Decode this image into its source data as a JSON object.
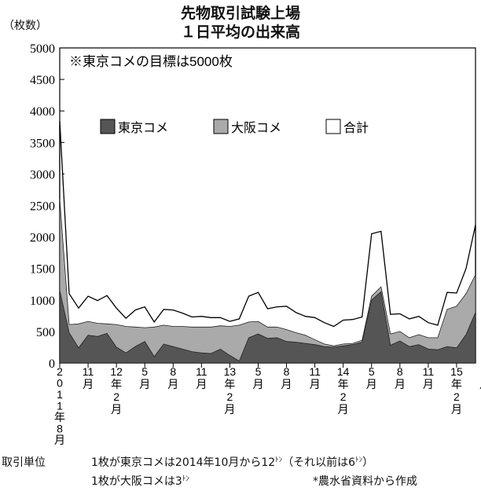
{
  "chart_data": {
    "type": "area",
    "title": "先物取引試験上場",
    "subtitle": "１日平均の出来高",
    "ylabel": "（枚数）",
    "ylim": [
      0,
      5000
    ],
    "yticks": [
      "0",
      "500",
      "1000",
      "1500",
      "2000",
      "2500",
      "3000",
      "3500",
      "4000",
      "4500",
      "5000"
    ],
    "annotation": "※東京コメの目標は5000枚",
    "legend_position": "top-center",
    "x_labels": [
      {
        "i": 0,
        "text": "2\n0\n1\n1\n年\n8\n月"
      },
      {
        "i": 3,
        "text": "11\n月"
      },
      {
        "i": 6,
        "text": "12\n年\n2\n月"
      },
      {
        "i": 9,
        "text": "5\n月"
      },
      {
        "i": 12,
        "text": "8\n月"
      },
      {
        "i": 15,
        "text": "11\n月"
      },
      {
        "i": 18,
        "text": "13\n年\n2\n月"
      },
      {
        "i": 21,
        "text": "5\n月"
      },
      {
        "i": 24,
        "text": "8\n月"
      },
      {
        "i": 27,
        "text": "11\n月"
      },
      {
        "i": 30,
        "text": "14\n年\n2\n月"
      },
      {
        "i": 33,
        "text": "5\n月"
      },
      {
        "i": 36,
        "text": "8\n月"
      },
      {
        "i": 39,
        "text": "11\n月"
      },
      {
        "i": 42,
        "text": "15\n年\n2\n月"
      },
      {
        "i": 45,
        "text": "5\n月"
      }
    ],
    "series": [
      {
        "name": "東京コメ",
        "color": "#555555",
        "values": [
          1150,
          480,
          240,
          440,
          420,
          470,
          250,
          160,
          260,
          340,
          100,
          300,
          260,
          220,
          180,
          160,
          150,
          220,
          120,
          30,
          400,
          460,
          390,
          400,
          340,
          330,
          310,
          290,
          260,
          250,
          270,
          290,
          330,
          1000,
          1130,
          280,
          350,
          260,
          290,
          220,
          210,
          260,
          240,
          450,
          800
        ]
      },
      {
        "name": "大阪コメ",
        "color": "#aaaaaa",
        "values": [
          1450,
          130,
          380,
          220,
          210,
          150,
          360,
          420,
          310,
          220,
          470,
          300,
          320,
          360,
          390,
          410,
          420,
          370,
          460,
          570,
          250,
          200,
          180,
          170,
          190,
          150,
          130,
          80,
          40,
          20,
          30,
          20,
          30,
          60,
          80,
          180,
          150,
          140,
          160,
          180,
          190,
          590,
          660,
          650,
          600
        ]
      },
      {
        "name": "合計",
        "color": "#ffffff",
        "values": [
          3840,
          1100,
          870,
          1060,
          990,
          1070,
          870,
          710,
          840,
          890,
          650,
          850,
          840,
          790,
          730,
          740,
          720,
          720,
          660,
          700,
          1060,
          1120,
          860,
          890,
          900,
          800,
          740,
          720,
          640,
          580,
          680,
          690,
          730,
          2050,
          2090,
          770,
          780,
          700,
          740,
          640,
          600,
          1120,
          1110,
          1500,
          2190
        ]
      }
    ]
  },
  "footer": {
    "label": "取引単位",
    "line1": "1枚が東京コメは2014年10月から12",
    "ton_mark": "ﾄﾝ",
    "line1b": "（それ以前は6",
    "line1c": "）",
    "line2": "1枚が大阪コメは3",
    "source": "*農水省資料から作成"
  }
}
